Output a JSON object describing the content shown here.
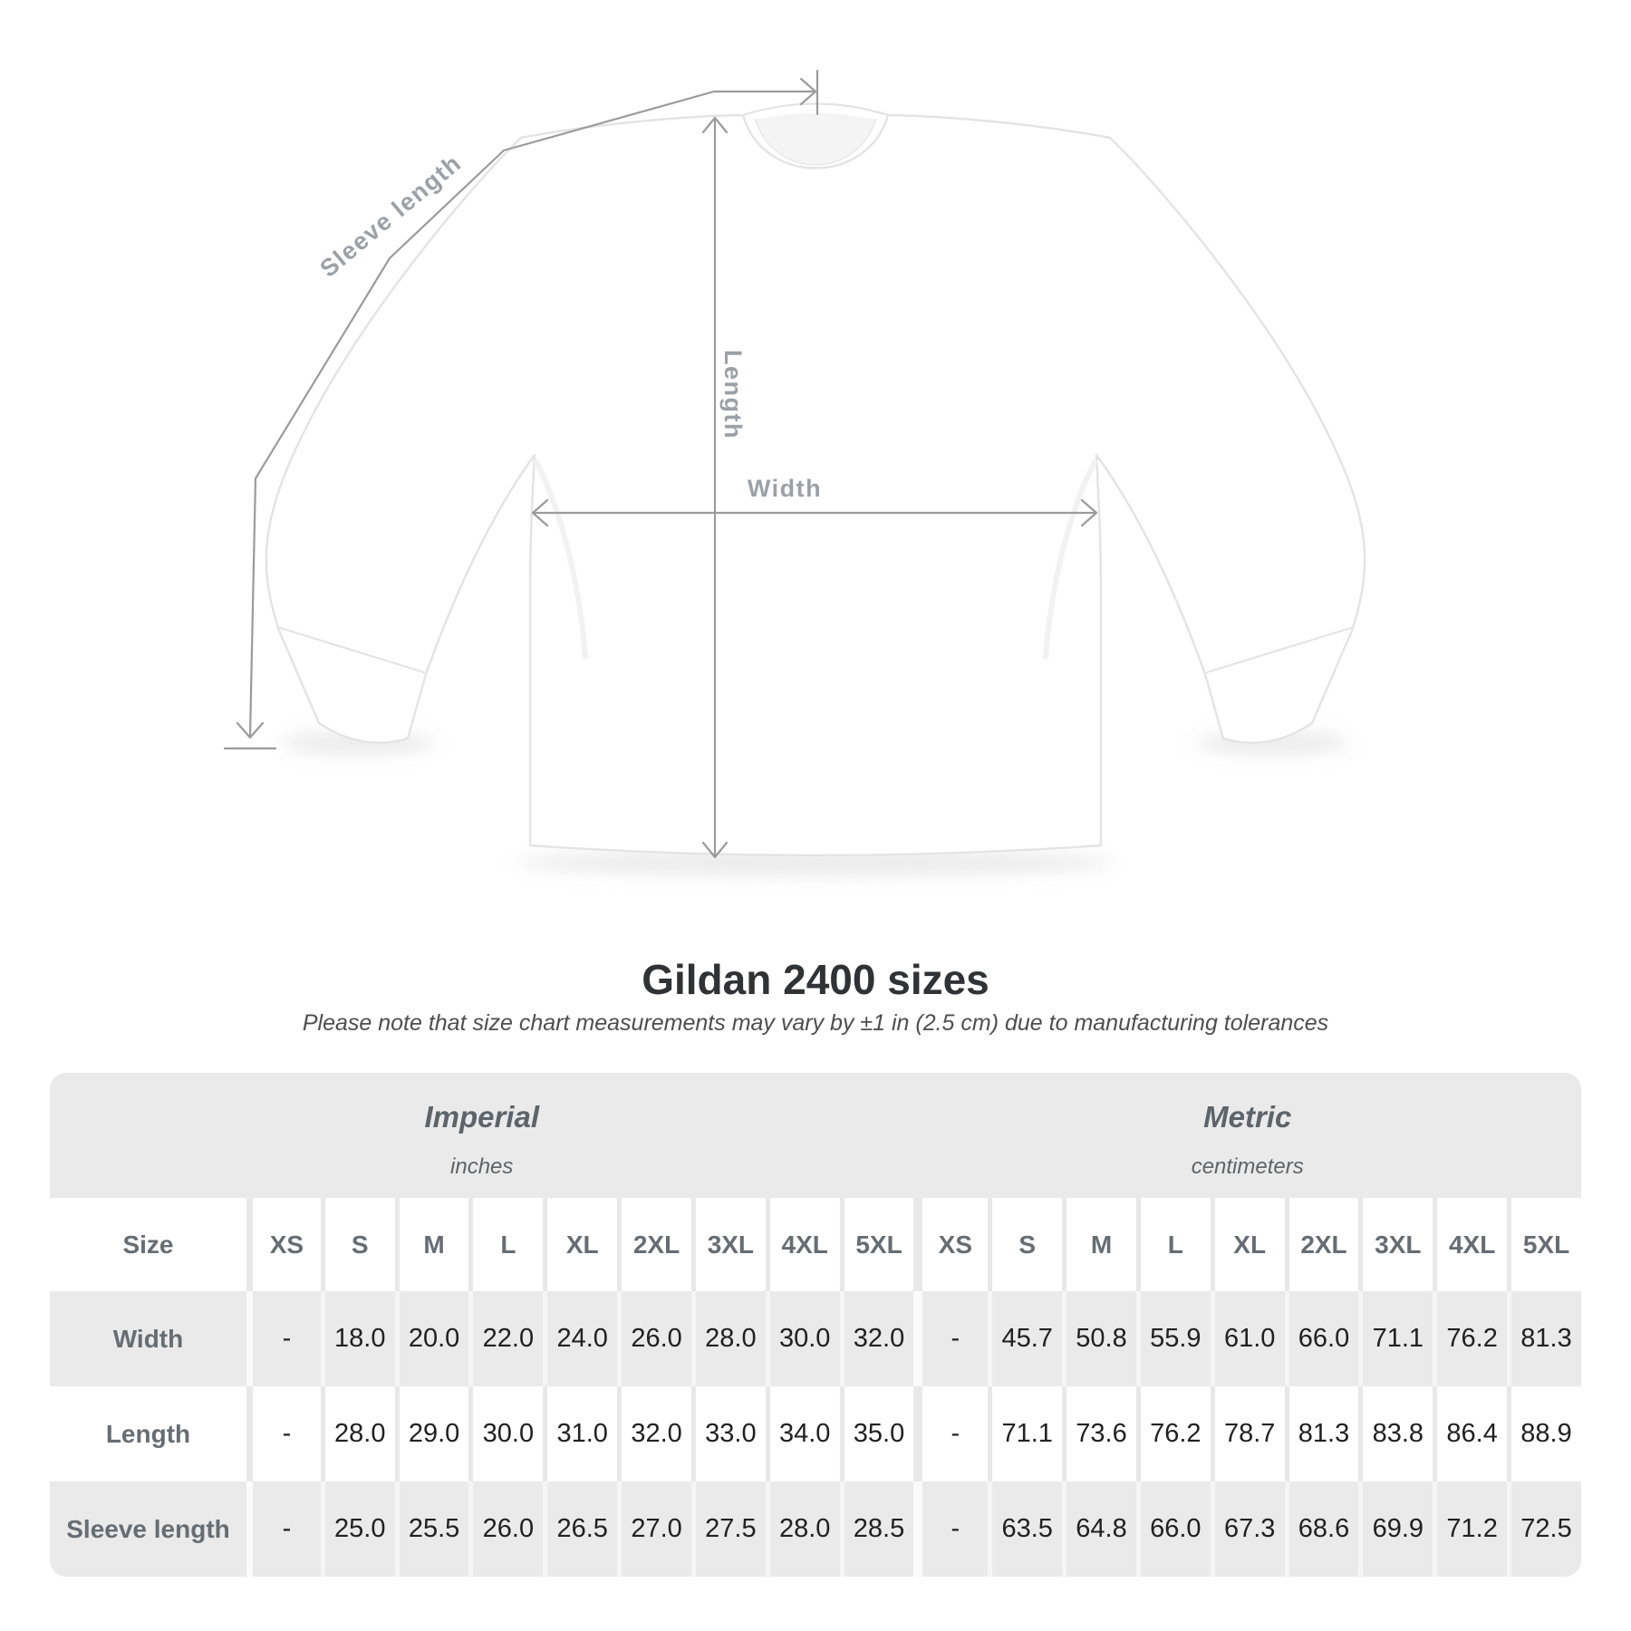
{
  "diagram": {
    "labels": {
      "sleeve_length": "Sleeve length",
      "length": "Length",
      "width": "Width"
    }
  },
  "title": "Gildan 2400 sizes",
  "subtitle": "Please note that size chart measurements may vary by ±1 in (2.5 cm) due to manufacturing tolerances",
  "table": {
    "unit_groups": [
      {
        "label": "Imperial",
        "sublabel": "inches"
      },
      {
        "label": "Metric",
        "sublabel": "centimeters"
      }
    ],
    "size_column_header": "Size",
    "sizes": [
      "XS",
      "S",
      "M",
      "L",
      "XL",
      "2XL",
      "3XL",
      "4XL",
      "5XL"
    ],
    "rows": [
      {
        "label": "Width",
        "imperial": [
          "-",
          "18.0",
          "20.0",
          "22.0",
          "24.0",
          "26.0",
          "28.0",
          "30.0",
          "32.0"
        ],
        "metric": [
          "-",
          "45.7",
          "50.8",
          "55.9",
          "61.0",
          "66.0",
          "71.1",
          "76.2",
          "81.3"
        ]
      },
      {
        "label": "Length",
        "imperial": [
          "-",
          "28.0",
          "29.0",
          "30.0",
          "31.0",
          "32.0",
          "33.0",
          "34.0",
          "35.0"
        ],
        "metric": [
          "-",
          "71.1",
          "73.6",
          "76.2",
          "78.7",
          "81.3",
          "83.8",
          "86.4",
          "88.9"
        ]
      },
      {
        "label": "Sleeve length",
        "imperial": [
          "-",
          "25.0",
          "25.5",
          "26.0",
          "26.5",
          "27.0",
          "27.5",
          "28.0",
          "28.5"
        ],
        "metric": [
          "-",
          "63.5",
          "64.8",
          "66.0",
          "67.3",
          "68.6",
          "69.9",
          "71.2",
          "72.5"
        ]
      }
    ]
  },
  "colors": {
    "table_band_gray": "#eaeaea",
    "header_label_gray": "#666d73",
    "value_text": "#212121",
    "measurement_gray": "#9ba1a6"
  },
  "chart_data": {
    "type": "table",
    "title": "Gildan 2400 sizes",
    "subtitle": "Please note that size chart measurements may vary by ±1 in (2.5 cm) due to manufacturing tolerances",
    "unit_groups": [
      "Imperial (inches)",
      "Metric (centimeters)"
    ],
    "sizes": [
      "XS",
      "S",
      "M",
      "L",
      "XL",
      "2XL",
      "3XL",
      "4XL",
      "5XL"
    ],
    "measurements": [
      {
        "name": "Width",
        "imperial_in": [
          null,
          18.0,
          20.0,
          22.0,
          24.0,
          26.0,
          28.0,
          30.0,
          32.0
        ],
        "metric_cm": [
          null,
          45.7,
          50.8,
          55.9,
          61.0,
          66.0,
          71.1,
          76.2,
          81.3
        ]
      },
      {
        "name": "Length",
        "imperial_in": [
          null,
          28.0,
          29.0,
          30.0,
          31.0,
          32.0,
          33.0,
          34.0,
          35.0
        ],
        "metric_cm": [
          null,
          71.1,
          73.6,
          76.2,
          78.7,
          81.3,
          83.8,
          86.4,
          88.9
        ]
      },
      {
        "name": "Sleeve length",
        "imperial_in": [
          null,
          25.0,
          25.5,
          26.0,
          26.5,
          27.0,
          27.5,
          28.0,
          28.5
        ],
        "metric_cm": [
          null,
          63.5,
          64.8,
          66.0,
          67.3,
          68.6,
          69.9,
          71.2,
          72.5
        ]
      }
    ]
  }
}
